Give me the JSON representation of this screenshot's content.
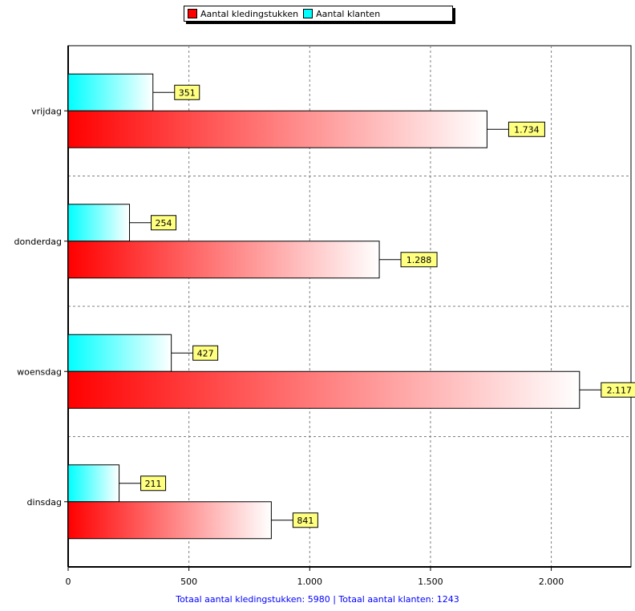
{
  "chart_data": {
    "type": "bar",
    "orientation": "horizontal",
    "categories": [
      "dinsdag",
      "woensdag",
      "donderdag",
      "vrijdag"
    ],
    "series": [
      {
        "name": "Aantal kledingstukken",
        "values": [
          841,
          2117,
          1288,
          1734
        ],
        "value_labels": [
          "841",
          "2.117",
          "1.288",
          "1.734"
        ],
        "color": "#ff0000"
      },
      {
        "name": "Aantal klanten",
        "values": [
          211,
          427,
          254,
          351
        ],
        "value_labels": [
          "211",
          "427",
          "254",
          "351"
        ],
        "color": "#00ffff"
      }
    ],
    "xlim": [
      0,
      2330
    ],
    "xticks": [
      0,
      500,
      1000,
      1500,
      2000
    ],
    "xtick_labels": [
      "0",
      "500",
      "1.000",
      "1.500",
      "2.000"
    ],
    "grid": true,
    "legend_position": "top-center",
    "label_color": "#ffff80",
    "footer": "Totaal aantal kledingstukken: 5980 | Totaal aantal klanten: 1243"
  }
}
